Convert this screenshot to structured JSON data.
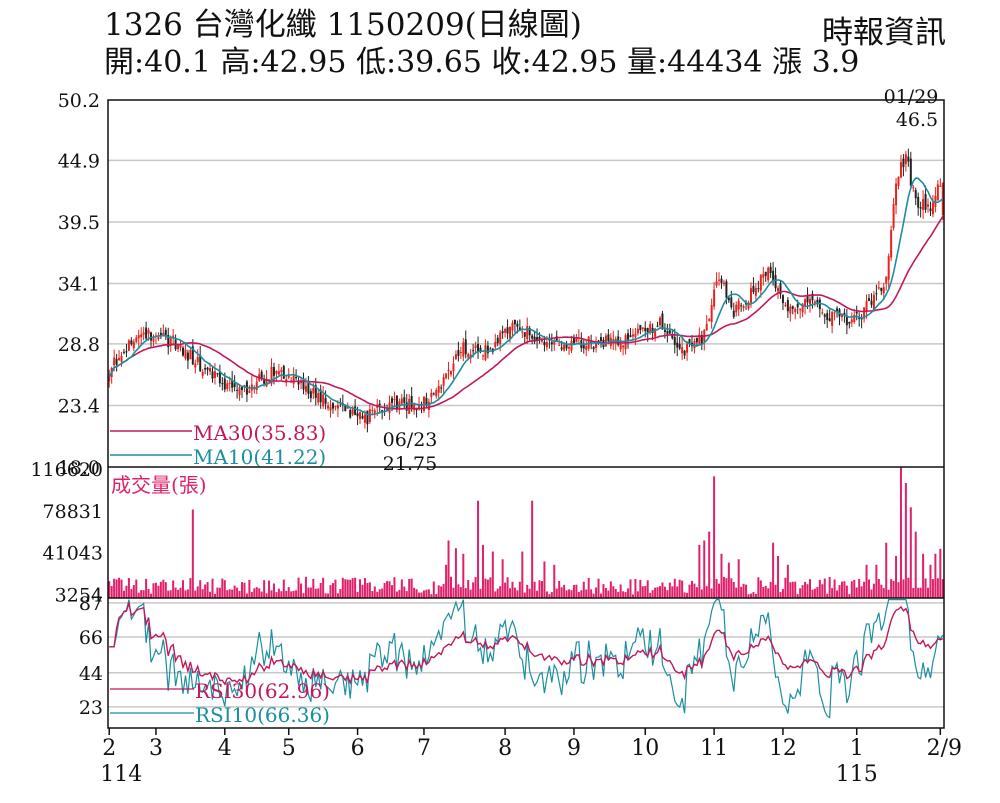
{
  "header": {
    "title": "1326  台灣化纖 1150209(日線圖)",
    "source": "時報資訊",
    "quote": "開:40.1 高:42.95 低:39.65 收:42.95 量:44434 漲 3.9"
  },
  "chart_data": {
    "type": "candlestick",
    "price": {
      "yticks": [
        "50.2",
        "44.9",
        "39.5",
        "34.1",
        "28.8",
        "23.4",
        "18.0"
      ],
      "ylim": [
        18.0,
        50.2
      ],
      "high_annotation": {
        "date": "01/29",
        "value": "46.5"
      },
      "low_annotation": {
        "date": "06/23",
        "value": "21.75"
      },
      "ma30_label": "MA30(35.83)",
      "ma10_label": "MA10(41.22)",
      "ma30_color": "#c2185b",
      "ma10_color": "#1a8fa0",
      "up_color": "#e8221c",
      "down_color": "#222222",
      "close_anchors": [
        [
          0,
          26.5
        ],
        [
          8,
          28.8
        ],
        [
          16,
          29.5
        ],
        [
          26,
          29.0
        ],
        [
          36,
          27.2
        ],
        [
          46,
          25.3
        ],
        [
          56,
          24.8
        ],
        [
          66,
          26.3
        ],
        [
          76,
          25.5
        ],
        [
          86,
          24.0
        ],
        [
          96,
          23.0
        ],
        [
          104,
          22.2
        ],
        [
          114,
          23.6
        ],
        [
          126,
          23.3
        ],
        [
          134,
          25.0
        ],
        [
          144,
          28.5
        ],
        [
          154,
          28.2
        ],
        [
          164,
          30.5
        ],
        [
          172,
          29.6
        ],
        [
          180,
          28.8
        ],
        [
          194,
          28.9
        ],
        [
          204,
          29.0
        ],
        [
          214,
          29.5
        ],
        [
          224,
          30.5
        ],
        [
          234,
          28.2
        ],
        [
          242,
          29.5
        ],
        [
          248,
          35.0
        ],
        [
          254,
          31.5
        ],
        [
          262,
          33.5
        ],
        [
          268,
          35.5
        ],
        [
          274,
          32.0
        ],
        [
          282,
          32.5
        ],
        [
          292,
          31.5
        ],
        [
          302,
          30.6
        ],
        [
          308,
          32.0
        ],
        [
          316,
          34.5
        ],
        [
          320,
          43.0
        ],
        [
          324,
          45.5
        ],
        [
          328,
          41.0
        ],
        [
          334,
          41.0
        ],
        [
          338,
          42.95
        ]
      ]
    },
    "volume": {
      "title": "成交量(張)",
      "yticks": [
        "116620",
        "78831",
        "41043",
        "3254"
      ],
      "ylim": [
        0,
        116620
      ],
      "bar_color": "#e0206a",
      "spikes": [
        [
          34,
          80000
        ],
        [
          137,
          30000
        ],
        [
          138,
          52000
        ],
        [
          141,
          45000
        ],
        [
          144,
          40000
        ],
        [
          150,
          88000
        ],
        [
          152,
          48000
        ],
        [
          156,
          42000
        ],
        [
          160,
          35000
        ],
        [
          168,
          42000
        ],
        [
          172,
          88000
        ],
        [
          177,
          33000
        ],
        [
          181,
          30000
        ],
        [
          240,
          48000
        ],
        [
          242,
          52000
        ],
        [
          244,
          60000
        ],
        [
          246,
          110000
        ],
        [
          249,
          40000
        ],
        [
          252,
          32000
        ],
        [
          256,
          35000
        ],
        [
          270,
          50000
        ],
        [
          272,
          38000
        ],
        [
          276,
          30000
        ],
        [
          308,
          30000
        ],
        [
          312,
          30000
        ],
        [
          316,
          50000
        ],
        [
          320,
          38000
        ],
        [
          322,
          118000
        ],
        [
          324,
          104000
        ],
        [
          326,
          82000
        ],
        [
          328,
          60000
        ],
        [
          331,
          40000
        ],
        [
          334,
          30000
        ],
        [
          336,
          40000
        ],
        [
          338,
          44434
        ]
      ]
    },
    "rsi": {
      "yticks": [
        "87",
        "66",
        "44",
        "23"
      ],
      "ylim": [
        10,
        90
      ],
      "rsi30_label": "RSI30(62.96)",
      "rsi10_label": "RSI10(66.36)"
    },
    "x_axis": {
      "ticks": [
        {
          "label": "2",
          "i": 0
        },
        {
          "label": "3",
          "i": 19
        },
        {
          "label": "4",
          "i": 47
        },
        {
          "label": "5",
          "i": 73
        },
        {
          "label": "6",
          "i": 101
        },
        {
          "label": "7",
          "i": 128
        },
        {
          "label": "8",
          "i": 161
        },
        {
          "label": "9",
          "i": 189
        },
        {
          "label": "10",
          "i": 218
        },
        {
          "label": "11",
          "i": 246
        },
        {
          "label": "12",
          "i": 274
        },
        {
          "label": "1",
          "i": 304
        },
        {
          "label": "2/9",
          "i": 338
        }
      ],
      "year_labels": [
        {
          "label": "114",
          "i": 0
        },
        {
          "label": "115",
          "i": 304
        }
      ]
    }
  }
}
